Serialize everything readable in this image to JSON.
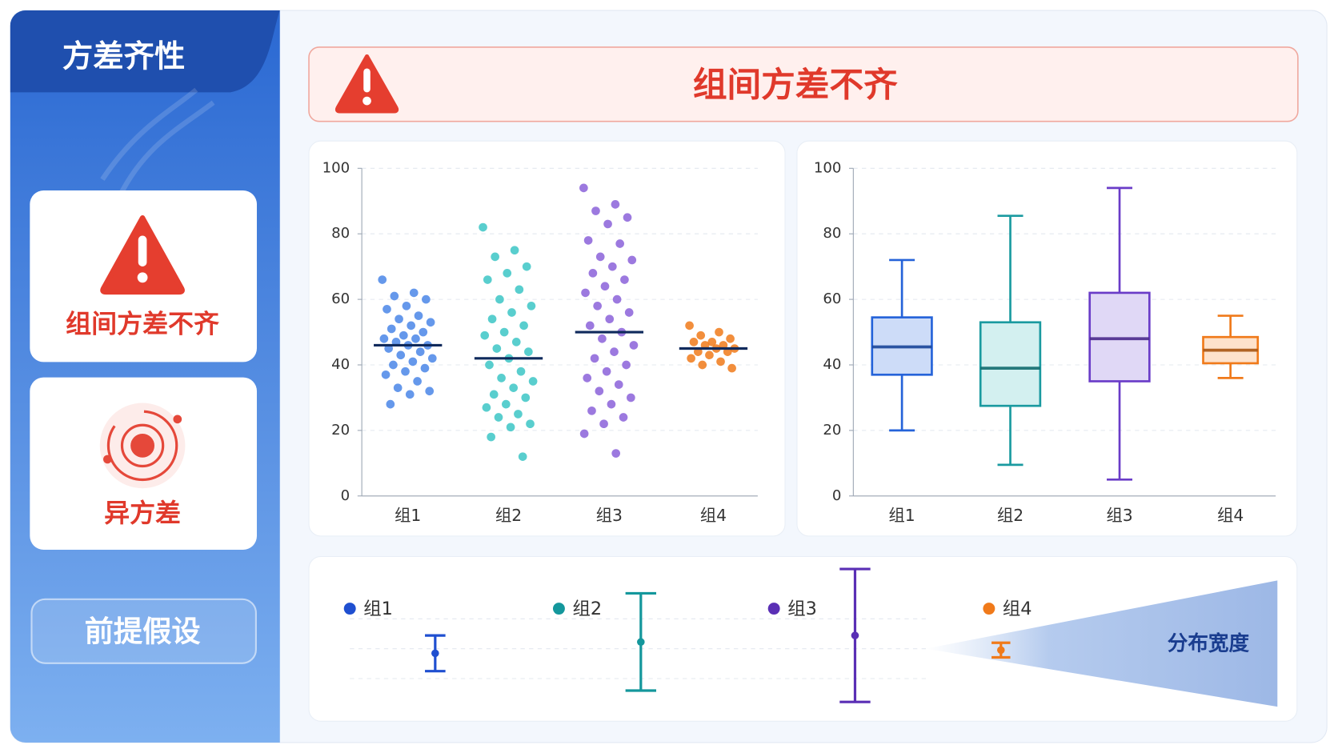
{
  "sidebar": {
    "title": "方差齐性",
    "cards": [
      "组间方差不齐",
      "异方差"
    ],
    "button": "前提假设"
  },
  "banner": {
    "text": "组间方差不齐"
  },
  "chart_data": [
    {
      "type": "strip",
      "categories": [
        "组1",
        "组2",
        "组3",
        "组4"
      ],
      "ylim": [
        0,
        100
      ],
      "yticks": [
        0,
        20,
        40,
        60,
        80,
        100
      ],
      "grid": true,
      "groups": [
        {
          "color": "#4a86e8",
          "mean": 46,
          "values": [
            66,
            62,
            61,
            60,
            58,
            57,
            55,
            54,
            53,
            52,
            51,
            50,
            49,
            48,
            48,
            47,
            46,
            46,
            45,
            44,
            43,
            42,
            41,
            40,
            39,
            38,
            37,
            35,
            33,
            32,
            31,
            28
          ]
        },
        {
          "color": "#3cc6c6",
          "mean": 42,
          "values": [
            82,
            75,
            73,
            70,
            68,
            66,
            63,
            60,
            58,
            56,
            54,
            52,
            50,
            49,
            47,
            45,
            44,
            42,
            40,
            38,
            36,
            35,
            33,
            31,
            30,
            28,
            27,
            25,
            24,
            22,
            21,
            18,
            12
          ]
        },
        {
          "color": "#8b62d9",
          "mean": 50,
          "values": [
            94,
            89,
            87,
            85,
            83,
            78,
            77,
            73,
            72,
            70,
            68,
            66,
            64,
            62,
            60,
            58,
            56,
            54,
            52,
            50,
            48,
            46,
            44,
            42,
            40,
            38,
            36,
            34,
            32,
            30,
            28,
            26,
            24,
            22,
            19,
            13
          ]
        },
        {
          "color": "#f07a1a",
          "mean": 45,
          "values": [
            52,
            50,
            49,
            48,
            47,
            47,
            46,
            46,
            45,
            45,
            44,
            44,
            43,
            42,
            41,
            40,
            39
          ]
        }
      ]
    },
    {
      "type": "box",
      "categories": [
        "组1",
        "组2",
        "组3",
        "组4"
      ],
      "ylim": [
        0,
        100
      ],
      "yticks": [
        0,
        20,
        40,
        60,
        80,
        100
      ],
      "grid": true,
      "boxes": [
        {
          "color": "#2563d9",
          "fill": "#cddcf8",
          "min": 20,
          "q1": 37,
          "median": 45.5,
          "q3": 54.5,
          "max": 72
        },
        {
          "color": "#1a9aa0",
          "fill": "#d3f0f0",
          "min": 9.5,
          "q1": 27.5,
          "median": 39,
          "q3": 53,
          "max": 85.5
        },
        {
          "color": "#6a3cc8",
          "fill": "#e0d8f6",
          "min": 5,
          "q1": 35,
          "median": 48,
          "q3": 62,
          "max": 94
        },
        {
          "color": "#f07a1a",
          "fill": "#fde2cc",
          "min": 36,
          "q1": 40.5,
          "median": 44.5,
          "q3": 48.5,
          "max": 55
        }
      ]
    },
    {
      "type": "errorbar",
      "ylim": [
        0,
        90
      ],
      "annotation": "分布宽度",
      "series": [
        {
          "name": "组1",
          "color": "#1f4fd0",
          "value": 34,
          "error": 11
        },
        {
          "name": "组2",
          "color": "#14979c",
          "value": 41,
          "error": 30
        },
        {
          "name": "组3",
          "color": "#5a2fb5",
          "value": 45,
          "error": 41
        },
        {
          "name": "组4",
          "color": "#f07a1a",
          "value": 36,
          "error": 4.5
        }
      ]
    }
  ]
}
